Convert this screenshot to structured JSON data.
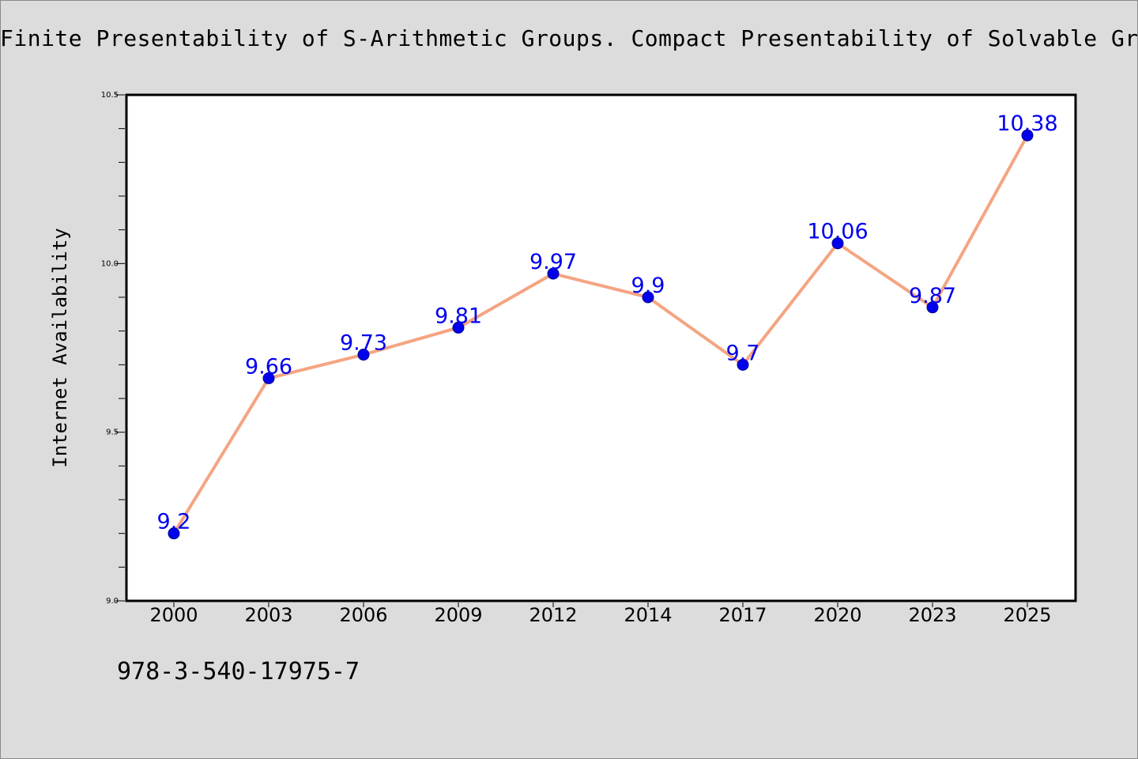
{
  "chart_data": {
    "type": "line",
    "title": "Finite Presentability of S-Arithmetic Groups. Compact Presentability of Solvable Groups",
    "xlabel": "",
    "ylabel": "Internet Availability",
    "categories": [
      "2000",
      "2003",
      "2006",
      "2009",
      "2012",
      "2014",
      "2017",
      "2020",
      "2023",
      "2025"
    ],
    "series": [
      {
        "values": [
          9.2,
          9.66,
          9.73,
          9.81,
          9.97,
          9.9,
          9.7,
          10.06,
          9.87,
          10.38
        ],
        "labels": [
          "9.2",
          "9.66",
          "9.73",
          "9.81",
          "9.97",
          "9.9",
          "9.7",
          "10.06",
          "9.87",
          "10.38"
        ],
        "line_color": "#f4a582",
        "marker_color": "#0000ee",
        "label_color": "#0000ee"
      }
    ],
    "ylim": [
      9.0,
      10.5
    ],
    "yticks": [
      "9.0",
      "9.5",
      "10.0",
      "10.5"
    ],
    "grid": false,
    "legend": "none"
  },
  "footer": {
    "isbn": "978-3-540-17975-7"
  },
  "colors": {
    "background": "#dcdcdc",
    "plot_background": "#ffffff",
    "axis": "#000000"
  }
}
